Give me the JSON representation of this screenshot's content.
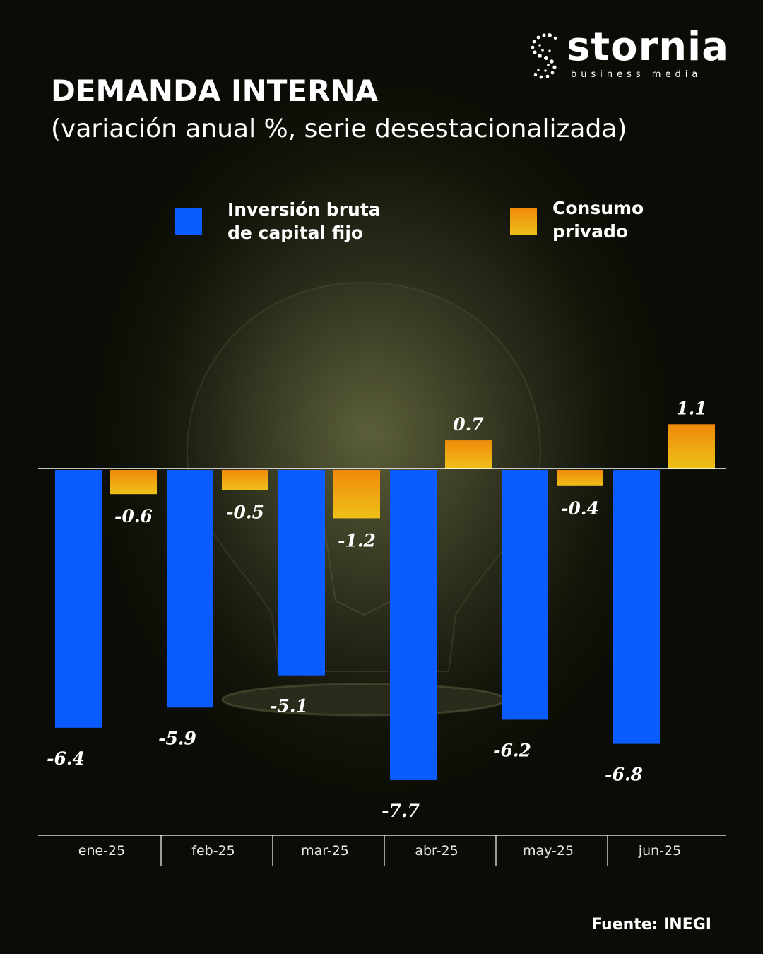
{
  "brand": {
    "name": "stornia",
    "tagline": "business   media"
  },
  "title": "DEMANDA INTERNA",
  "subtitle": "(variación anual %, serie desestacionalizada)",
  "legend": [
    {
      "label_line1": "Inversión bruta",
      "label_line2": "de capital fijo",
      "color": "#0a5cff"
    },
    {
      "label_line1": "Consumo",
      "label_line2": "privado",
      "color": "#f29d0c"
    }
  ],
  "source": "Fuente: INEGI",
  "chart_data": {
    "type": "bar",
    "categories": [
      "ene-25",
      "feb-25",
      "mar-25",
      "abr-25",
      "may-25",
      "jun-25"
    ],
    "series": [
      {
        "name": "Inversión bruta de capital fijo",
        "values": [
          -6.4,
          -5.9,
          -5.1,
          -7.7,
          -6.2,
          -6.8
        ],
        "color": "#0a5cff"
      },
      {
        "name": "Consumo privado",
        "values": [
          -0.6,
          -0.5,
          -1.2,
          0.7,
          -0.4,
          1.1
        ],
        "color": "#f29d0c"
      }
    ],
    "value_labels": [
      [
        "-6.4",
        "-5.9",
        "-5.1",
        "-7.7",
        "-6.2",
        "-6.8"
      ],
      [
        "-0.6",
        "-0.5",
        "-1.2",
        "0.7",
        "-0.4",
        "1.1"
      ]
    ],
    "ylim": [
      -8,
      2
    ],
    "grid": false,
    "legend_position": "top"
  }
}
